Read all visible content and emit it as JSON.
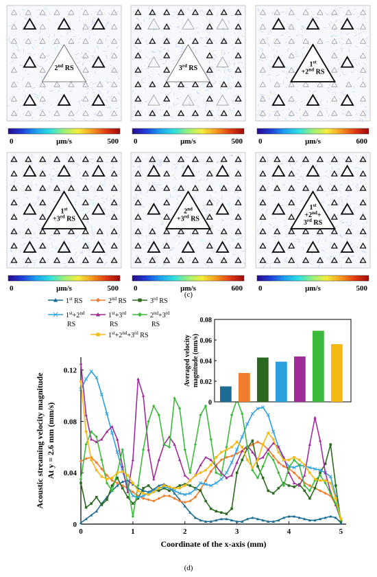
{
  "panel_c": {
    "label": "(c)",
    "panels": [
      {
        "text_lines": [
          "2nd RS"
        ],
        "unit": "μm/s",
        "cb_min": "0",
        "cb_max": "500",
        "tri_pattern": "sparse"
      },
      {
        "text_lines": [
          "3rd RS"
        ],
        "unit": "μm/s",
        "cb_min": "0",
        "cb_max": "500",
        "tri_pattern": "dense"
      },
      {
        "text_lines": [
          "1st",
          "+2nd RS"
        ],
        "unit": "μm/s",
        "cb_min": "0",
        "cb_max": "600",
        "tri_pattern": "sparse"
      },
      {
        "text_lines": [
          "1st",
          "+3rd RS"
        ],
        "unit": "μm/s",
        "cb_min": "0",
        "cb_max": "500",
        "tri_pattern": "dense_big"
      },
      {
        "text_lines": [
          "2nd",
          "+3rd RS"
        ],
        "unit": "μm/s",
        "cb_min": "0",
        "cb_max": "600",
        "tri_pattern": "dense_big"
      },
      {
        "text_lines": [
          "1st",
          "+2nd+",
          "3rd RS"
        ],
        "unit": "μm/s",
        "cb_min": "0",
        "cb_max": "500",
        "tri_pattern": "dense_big"
      }
    ],
    "colorbar_colors": [
      "#2a0a8c",
      "#1f3fd8",
      "#1ea0f0",
      "#2ee0e0",
      "#9cf07a",
      "#f5ee3c",
      "#f59a1e",
      "#e03c14",
      "#a00a0a"
    ]
  },
  "panel_d_label": "(d)",
  "chart_data": [
    {
      "type": "line",
      "xlabel": "Coordinate of the x-axis  (mm)",
      "ylabel_line1": "Acoustic streaming velocity magnitude",
      "ylabel_line2": "At y = 2.6 mm  (mm/s)",
      "xlim": [
        0,
        5.1
      ],
      "ylim": [
        0,
        0.13
      ],
      "xticks": [
        "0",
        "1",
        "2",
        "3",
        "4",
        "5"
      ],
      "yticks": [
        "0",
        "0.04",
        "0.08",
        "0.12"
      ],
      "legend": "top-left",
      "series": [
        {
          "name": "1st RS",
          "color": "#1c6c94",
          "marker": "triangle",
          "x": [
            0,
            0.1,
            0.2,
            0.3,
            0.4,
            0.5,
            0.6,
            0.7,
            0.8,
            0.9,
            1.0,
            1.1,
            1.2,
            1.3,
            1.4,
            1.5,
            1.6,
            1.7,
            1.8,
            1.9,
            2.0,
            2.1,
            2.2,
            2.3,
            2.4,
            2.5,
            2.6,
            2.7,
            2.8,
            2.9,
            3.0,
            3.1,
            3.2,
            3.3,
            3.4,
            3.5,
            3.6,
            3.7,
            3.8,
            3.9,
            4.0,
            4.1,
            4.2,
            4.3,
            4.4,
            4.5,
            4.6,
            4.7,
            4.8,
            4.9,
            5.0
          ],
          "y": [
            0.001,
            0.004,
            0.007,
            0.01,
            0.016,
            0.021,
            0.026,
            0.03,
            0.033,
            0.034,
            0.031,
            0.028,
            0.026,
            0.025,
            0.027,
            0.03,
            0.031,
            0.029,
            0.024,
            0.019,
            0.014,
            0.009,
            0.005,
            0.003,
            0.002,
            0.002,
            0.003,
            0.004,
            0.004,
            0.003,
            0.002,
            0.002,
            0.004,
            0.005,
            0.004,
            0.003,
            0.002,
            0.002,
            0.003,
            0.005,
            0.006,
            0.006,
            0.005,
            0.004,
            0.003,
            0.003,
            0.004,
            0.005,
            0.006,
            0.005,
            0.001
          ]
        },
        {
          "name": "2nd RS",
          "color": "#f07c2c",
          "marker": "diamond",
          "x": [
            0,
            0.1,
            0.2,
            0.3,
            0.4,
            0.5,
            0.6,
            0.7,
            0.8,
            0.9,
            1.0,
            1.1,
            1.2,
            1.3,
            1.4,
            1.5,
            1.6,
            1.7,
            1.8,
            1.9,
            2.0,
            2.1,
            2.2,
            2.3,
            2.4,
            2.5,
            2.6,
            2.7,
            2.8,
            2.9,
            3.0,
            3.1,
            3.2,
            3.3,
            3.4,
            3.5,
            3.6,
            3.7,
            3.8,
            3.9,
            4.0,
            4.1,
            4.2,
            4.3,
            4.4,
            4.5,
            4.6,
            4.7,
            4.8,
            4.9,
            5.0
          ],
          "y": [
            0.049,
            0.051,
            0.052,
            0.048,
            0.043,
            0.038,
            0.034,
            0.032,
            0.03,
            0.028,
            0.025,
            0.022,
            0.02,
            0.019,
            0.018,
            0.02,
            0.022,
            0.022,
            0.02,
            0.018,
            0.017,
            0.018,
            0.021,
            0.027,
            0.034,
            0.041,
            0.046,
            0.05,
            0.052,
            0.053,
            0.055,
            0.057,
            0.06,
            0.062,
            0.064,
            0.062,
            0.058,
            0.053,
            0.048,
            0.045,
            0.043,
            0.04,
            0.036,
            0.032,
            0.03,
            0.028,
            0.026,
            0.024,
            0.022,
            0.015,
            0.003
          ]
        },
        {
          "name": "3rd RS",
          "color": "#2a6a1e",
          "marker": "square",
          "x": [
            0,
            0.1,
            0.2,
            0.3,
            0.4,
            0.5,
            0.6,
            0.7,
            0.8,
            0.9,
            1.0,
            1.1,
            1.2,
            1.3,
            1.4,
            1.5,
            1.6,
            1.7,
            1.8,
            1.9,
            2.0,
            2.1,
            2.2,
            2.3,
            2.4,
            2.5,
            2.6,
            2.7,
            2.8,
            2.9,
            3.0,
            3.1,
            3.2,
            3.3,
            3.4,
            3.5,
            3.6,
            3.7,
            3.8,
            3.9,
            4.0,
            4.1,
            4.2,
            4.3,
            4.4,
            4.5,
            4.6,
            4.7,
            4.8,
            4.9,
            5.0
          ],
          "y": [
            0.032,
            0.013,
            0.016,
            0.021,
            0.015,
            0.019,
            0.03,
            0.036,
            0.028,
            0.021,
            0.016,
            0.02,
            0.028,
            0.03,
            0.026,
            0.026,
            0.028,
            0.026,
            0.028,
            0.03,
            0.031,
            0.03,
            0.028,
            0.026,
            0.018,
            0.012,
            0.01,
            0.009,
            0.008,
            0.012,
            0.04,
            0.05,
            0.059,
            0.065,
            0.045,
            0.036,
            0.026,
            0.024,
            0.028,
            0.032,
            0.03,
            0.029,
            0.031,
            0.026,
            0.02,
            0.028,
            0.04,
            0.047,
            0.062,
            0.03,
            0.002
          ]
        },
        {
          "name": "1st+2nd RS",
          "color": "#2aa0e0",
          "marker": "x",
          "x": [
            0,
            0.1,
            0.2,
            0.3,
            0.4,
            0.5,
            0.6,
            0.7,
            0.8,
            0.9,
            1.0,
            1.1,
            1.2,
            1.3,
            1.4,
            1.5,
            1.6,
            1.7,
            1.8,
            1.9,
            2.0,
            2.1,
            2.2,
            2.3,
            2.4,
            2.5,
            2.6,
            2.7,
            2.8,
            2.9,
            3.0,
            3.1,
            3.2,
            3.3,
            3.4,
            3.5,
            3.6,
            3.7,
            3.8,
            3.9,
            4.0,
            4.1,
            4.2,
            4.3,
            4.4,
            4.5,
            4.6,
            4.7,
            4.8,
            4.9,
            5.0
          ],
          "y": [
            0.105,
            0.113,
            0.119,
            0.114,
            0.101,
            0.086,
            0.071,
            0.056,
            0.041,
            0.029,
            0.022,
            0.021,
            0.022,
            0.024,
            0.026,
            0.028,
            0.029,
            0.028,
            0.026,
            0.024,
            0.023,
            0.024,
            0.027,
            0.032,
            0.031,
            0.03,
            0.032,
            0.035,
            0.04,
            0.048,
            0.058,
            0.068,
            0.078,
            0.086,
            0.09,
            0.091,
            0.085,
            0.072,
            0.06,
            0.05,
            0.045,
            0.044,
            0.046,
            0.045,
            0.044,
            0.043,
            0.042,
            0.04,
            0.037,
            0.022,
            0.004
          ]
        },
        {
          "name": "1st+3rd RS",
          "color": "#a02c9c",
          "marker": "triangle",
          "x": [
            0,
            0.1,
            0.2,
            0.3,
            0.4,
            0.5,
            0.6,
            0.7,
            0.8,
            0.9,
            1.0,
            1.1,
            1.2,
            1.3,
            1.4,
            1.5,
            1.6,
            1.7,
            1.8,
            1.9,
            2.0,
            2.1,
            2.2,
            2.3,
            2.4,
            2.5,
            2.6,
            2.7,
            2.8,
            2.9,
            3.0,
            3.1,
            3.2,
            3.3,
            3.4,
            3.5,
            3.6,
            3.7,
            3.8,
            3.9,
            4.0,
            4.1,
            4.2,
            4.3,
            4.4,
            4.5,
            4.6,
            4.7,
            4.8,
            4.9,
            5.0
          ],
          "y": [
            0.125,
            0.085,
            0.066,
            0.064,
            0.066,
            0.072,
            0.076,
            0.066,
            0.045,
            0.025,
            0.05,
            0.113,
            0.1,
            0.058,
            0.035,
            0.05,
            0.062,
            0.068,
            0.062,
            0.05,
            0.038,
            0.034,
            0.038,
            0.046,
            0.052,
            0.05,
            0.045,
            0.04,
            0.036,
            0.038,
            0.048,
            0.057,
            0.061,
            0.056,
            0.05,
            0.052,
            0.058,
            0.063,
            0.06,
            0.052,
            0.04,
            0.032,
            0.03,
            0.038,
            0.062,
            0.083,
            0.065,
            0.04,
            0.025,
            0.015,
            0.003
          ]
        },
        {
          "name": "2nd+3rd RS",
          "color": "#3cba3c",
          "marker": "diamond",
          "x": [
            0,
            0.1,
            0.2,
            0.3,
            0.4,
            0.5,
            0.6,
            0.7,
            0.8,
            0.9,
            1.0,
            1.1,
            1.2,
            1.3,
            1.4,
            1.5,
            1.6,
            1.7,
            1.8,
            1.9,
            2.0,
            2.1,
            2.2,
            2.3,
            2.4,
            2.5,
            2.6,
            2.7,
            2.8,
            2.9,
            3.0,
            3.1,
            3.2,
            3.3,
            3.4,
            3.5,
            3.6,
            3.7,
            3.8,
            3.9,
            4.0,
            4.1,
            4.2,
            4.3,
            4.4,
            4.5,
            4.6,
            4.7,
            4.8,
            4.9,
            5.0
          ],
          "y": [
            0.035,
            0.062,
            0.072,
            0.068,
            0.05,
            0.032,
            0.026,
            0.04,
            0.058,
            0.03,
            0.006,
            0.03,
            0.058,
            0.08,
            0.092,
            0.085,
            0.062,
            0.06,
            0.098,
            0.09,
            0.058,
            0.04,
            0.062,
            0.085,
            0.092,
            0.066,
            0.04,
            0.038,
            0.06,
            0.085,
            0.097,
            0.086,
            0.06,
            0.042,
            0.036,
            0.045,
            0.055,
            0.05,
            0.04,
            0.03,
            0.044,
            0.05,
            0.046,
            0.03,
            0.026,
            0.034,
            0.038,
            0.032,
            0.024,
            0.016,
            0.003
          ]
        },
        {
          "name": "1st+2nd+3rd RS",
          "color": "#f5b914",
          "marker": "square",
          "x": [
            0,
            0.1,
            0.2,
            0.3,
            0.4,
            0.5,
            0.6,
            0.7,
            0.8,
            0.9,
            1.0,
            1.1,
            1.2,
            1.3,
            1.4,
            1.5,
            1.6,
            1.7,
            1.8,
            1.9,
            2.0,
            2.1,
            2.2,
            2.3,
            2.4,
            2.5,
            2.6,
            2.7,
            2.8,
            2.9,
            3.0,
            3.1,
            3.2,
            3.3,
            3.4,
            3.5,
            3.6,
            3.7,
            3.8,
            3.9,
            4.0,
            4.1,
            4.2,
            4.3,
            4.4,
            4.5,
            4.6,
            4.7,
            4.8,
            4.9,
            5.0
          ],
          "y": [
            0.111,
            0.072,
            0.05,
            0.042,
            0.037,
            0.035,
            0.036,
            0.04,
            0.041,
            0.038,
            0.032,
            0.026,
            0.024,
            0.023,
            0.025,
            0.028,
            0.03,
            0.029,
            0.028,
            0.028,
            0.03,
            0.034,
            0.038,
            0.04,
            0.042,
            0.046,
            0.052,
            0.056,
            0.058,
            0.06,
            0.064,
            0.06,
            0.05,
            0.044,
            0.05,
            0.062,
            0.071,
            0.066,
            0.056,
            0.05,
            0.05,
            0.052,
            0.05,
            0.046,
            0.04,
            0.035,
            0.034,
            0.034,
            0.032,
            0.02,
            0.004
          ]
        }
      ]
    },
    {
      "type": "bar",
      "ylabel_line1": "Averaged velocity",
      "ylabel_line2": "magnitude (mm/s)",
      "ylim": [
        0,
        0.08
      ],
      "yticks": [
        "0",
        "0.02",
        "0.04",
        "0.06",
        "0.08"
      ],
      "categories": [
        "1st RS",
        "2nd RS",
        "3rd RS",
        "1st+2nd RS",
        "1st+3rd RS",
        "2nd+3rd RS",
        "1st+2nd+3rd RS"
      ],
      "values": [
        0.015,
        0.028,
        0.043,
        0.039,
        0.044,
        0.069,
        0.056
      ],
      "colors": [
        "#1c6c94",
        "#f07c2c",
        "#2a6a1e",
        "#2aa0e0",
        "#a02c9c",
        "#3cba3c",
        "#f5b914"
      ]
    }
  ]
}
